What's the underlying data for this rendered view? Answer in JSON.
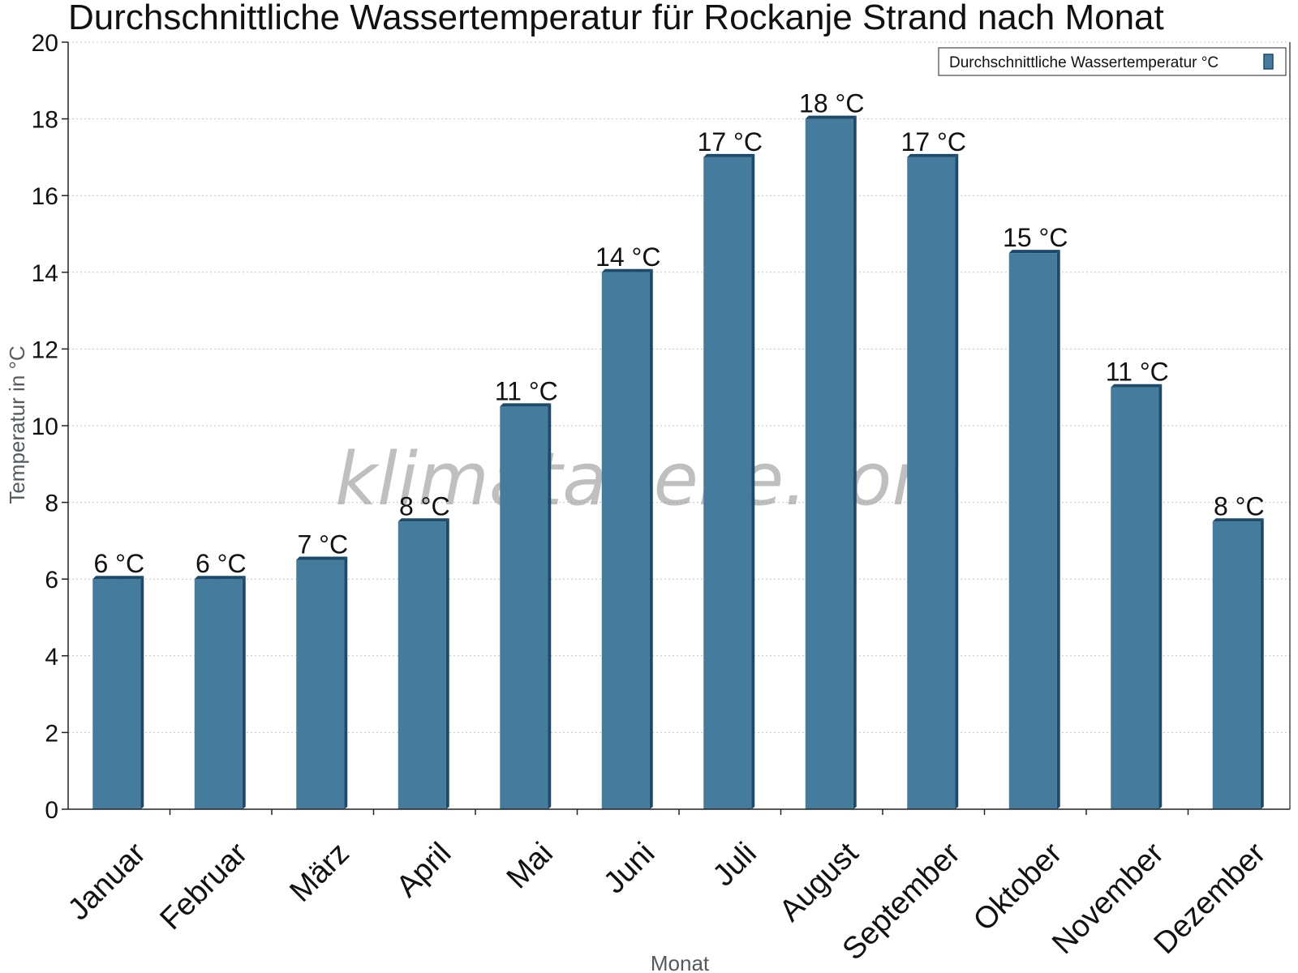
{
  "chart_data": {
    "type": "bar",
    "title": "Durchschnittliche Wassertemperatur für Rockanje Strand nach Monat",
    "xlabel": "Monat",
    "ylabel": "Temperatur in °C",
    "ylim": [
      0,
      20
    ],
    "yticks": [
      0,
      2,
      4,
      6,
      8,
      10,
      12,
      14,
      16,
      18,
      20
    ],
    "grid": true,
    "legend_position": "top-right",
    "categories": [
      "Januar",
      "Februar",
      "März",
      "April",
      "Mai",
      "Juni",
      "Juli",
      "August",
      "September",
      "Oktober",
      "November",
      "Dezember"
    ],
    "series": [
      {
        "name": "Durchschnittliche Wassertemperatur °C",
        "values": [
          6,
          6,
          6.5,
          7.5,
          10.5,
          14,
          17,
          18,
          17,
          14.5,
          11,
          7.5
        ],
        "labels": [
          "6 °C",
          "6 °C",
          "7 °C",
          "8 °C",
          "11 °C",
          "14 °C",
          "17 °C",
          "18 °C",
          "17 °C",
          "15 °C",
          "11 °C",
          "8 °C"
        ],
        "color": "#457b9d",
        "edge_color": "#1b4a6b"
      }
    ],
    "watermark": "klimatabelle.com"
  }
}
